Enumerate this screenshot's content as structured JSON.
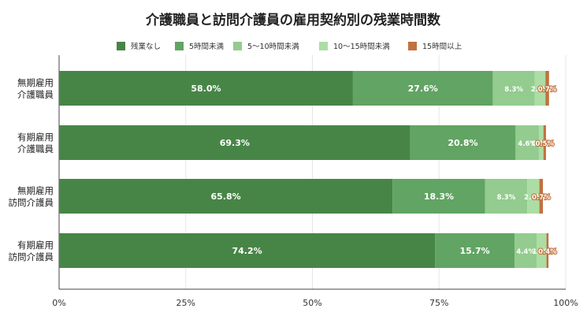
{
  "chart_data": {
    "type": "bar",
    "orientation": "horizontal",
    "stacked": true,
    "title": "介護職員と訪問介護員の雇用契約別の残業時間数",
    "categories": [
      "無期雇用\n介護職員",
      "有期雇用\n介護職員",
      "無期雇用\n訪問介護員",
      "有期雇用\n訪問介護員"
    ],
    "series": [
      {
        "name": "残業なし",
        "color": "#478547",
        "label_color": "#ffffff",
        "values": [
          58.0,
          69.3,
          65.8,
          74.2
        ]
      },
      {
        "name": "5時間未満",
        "color": "#61a463",
        "label_color": "#ffffff",
        "values": [
          27.6,
          20.8,
          18.3,
          15.7
        ]
      },
      {
        "name": "5〜10時間未満",
        "color": "#93cc8e",
        "label_color": "#ffffff",
        "values": [
          8.3,
          4.6,
          8.3,
          4.4
        ]
      },
      {
        "name": "10〜15時間未満",
        "color": "#acdda5",
        "label_color": "#ffffff",
        "values": [
          2.1,
          0.9,
          2.4,
          1.9
        ]
      },
      {
        "name": "15時間以上",
        "color": "#c0713f",
        "label_color": "#ffffff",
        "values": [
          0.7,
          0.5,
          0.7,
          0.4
        ]
      }
    ],
    "x_ticks": [
      "0%",
      "25%",
      "50%",
      "75%",
      "100%"
    ],
    "xlim": [
      0,
      100
    ],
    "value_suffix": "%",
    "legend_position": "top",
    "grid": true
  }
}
